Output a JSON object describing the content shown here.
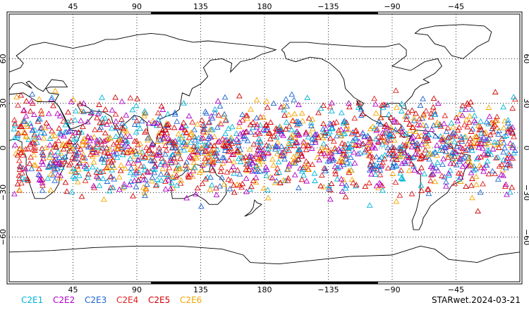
{
  "map": {
    "projection": "cylindrical equidistant",
    "center_longitude": 180,
    "lon_range": [
      0,
      360
    ],
    "lat_range": [
      -90,
      90
    ],
    "grid": true,
    "grid_style": "dotted",
    "top_axis_labels": [
      "45",
      "90",
      "135",
      "180",
      "−135",
      "−90",
      "−45"
    ],
    "bottom_axis_labels": [
      "45",
      "90",
      "135",
      "180",
      "−135",
      "−90",
      "−45"
    ],
    "left_axis_labels": [
      "60",
      "30",
      "0",
      "−30",
      "−60"
    ],
    "right_axis_labels": [
      "60",
      "30",
      "0",
      "−30",
      "−60"
    ],
    "marker": "open triangle",
    "coverage_lat": [
      -45,
      45
    ]
  },
  "legend": [
    {
      "label": "C2E1",
      "color": "#00b4d8"
    },
    {
      "label": "C2E2",
      "color": "#b000c8"
    },
    {
      "label": "C2E3",
      "color": "#1e64d2"
    },
    {
      "label": "C2E4",
      "color": "#e01e1e"
    },
    {
      "label": "C2E5",
      "color": "#d20000"
    },
    {
      "label": "C2E6",
      "color": "#f5a500"
    }
  ],
  "caption": "STARwet.2024-03-21"
}
